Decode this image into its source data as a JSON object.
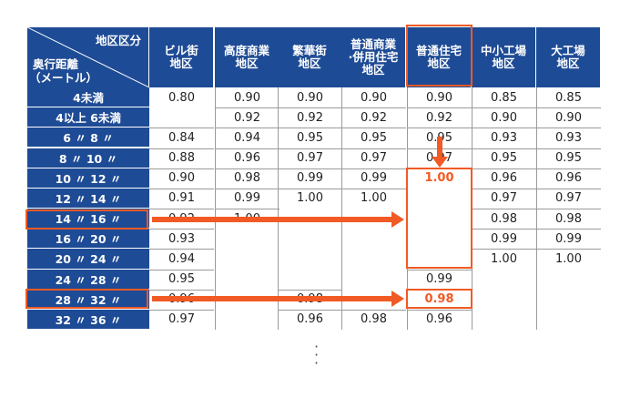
{
  "header": {
    "corner_top": "地区区分",
    "corner_bottom_1": "奥行距離",
    "corner_bottom_2": "（メートル）",
    "columns": [
      {
        "line1": "ビル街",
        "line2": "地区",
        "line3": ""
      },
      {
        "line1": "高度商業",
        "line2": "地区",
        "line3": ""
      },
      {
        "line1": "繁華街",
        "line2": "地区",
        "line3": ""
      },
      {
        "line1": "普通商業",
        "line2": "·併用住宅",
        "line3": "地区"
      },
      {
        "line1": "普通住宅",
        "line2": "地区",
        "line3": ""
      },
      {
        "line1": "中小工場",
        "line2": "地区",
        "line3": ""
      },
      {
        "line1": "大工場",
        "line2": "地区",
        "line3": ""
      }
    ]
  },
  "rows": [
    {
      "label": "4未満",
      "v": [
        "0.80",
        "0.90",
        "0.90",
        "0.90",
        "0.90",
        "0.85",
        "0.85"
      ]
    },
    {
      "label": "4以上 6未満",
      "v": [
        "",
        "0.92",
        "0.92",
        "0.92",
        "0.92",
        "0.90",
        "0.90"
      ]
    },
    {
      "label": "6 〃 8 〃",
      "v": [
        "0.84",
        "0.94",
        "0.95",
        "0.95",
        "0.95",
        "0.93",
        "0.93"
      ]
    },
    {
      "label": "8 〃 10 〃",
      "v": [
        "0.88",
        "0.96",
        "0.97",
        "0.97",
        "0.97",
        "0.95",
        "0.95"
      ]
    },
    {
      "label": "10 〃 12 〃",
      "v": [
        "0.90",
        "0.98",
        "0.99",
        "0.99",
        "1.00",
        "0.96",
        "0.96"
      ]
    },
    {
      "label": "12 〃 14 〃",
      "v": [
        "0.91",
        "0.99",
        "1.00",
        "1.00",
        "",
        "0.97",
        "0.97"
      ]
    },
    {
      "label": "14 〃 16 〃",
      "v": [
        "0.92",
        "1.00",
        "",
        "",
        "",
        "0.98",
        "0.98"
      ]
    },
    {
      "label": "16 〃 20 〃",
      "v": [
        "0.93",
        "",
        "",
        "",
        "",
        "0.99",
        "0.99"
      ]
    },
    {
      "label": "20 〃 24 〃",
      "v": [
        "0.94",
        "",
        "",
        "",
        "",
        "1.00",
        "1.00"
      ]
    },
    {
      "label": "24 〃 28 〃",
      "v": [
        "0.95",
        "",
        "",
        "",
        "0.99",
        "",
        ""
      ]
    },
    {
      "label": "28 〃 32 〃",
      "v": [
        "0.96",
        "",
        "0.98",
        "",
        "0.98",
        "",
        ""
      ]
    },
    {
      "label": "32 〃 36 〃",
      "v": [
        "0.97",
        "",
        "0.96",
        "0.98",
        "0.96",
        "",
        ""
      ]
    }
  ],
  "highlight_color": "#f15a24",
  "header_color": "#1e4b95",
  "continuation": "⋮"
}
